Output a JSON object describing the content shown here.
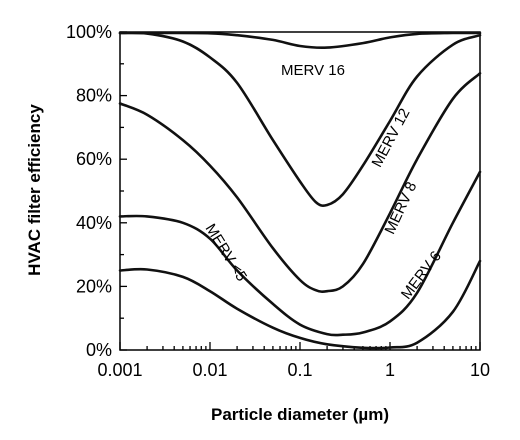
{
  "chart_data": {
    "type": "line",
    "x_scale": "log",
    "xlabel": "Particle diameter (µm)",
    "ylabel": "HVAC filter efficiency",
    "xlim": [
      0.001,
      10
    ],
    "ylim": [
      0,
      100
    ],
    "x_ticks": [
      0.001,
      0.01,
      0.1,
      1,
      10
    ],
    "x_tick_labels": [
      "0.001",
      "0.01",
      "0.1",
      "1",
      "10"
    ],
    "y_ticks": [
      0,
      20,
      40,
      60,
      80,
      100
    ],
    "y_tick_labels": [
      "0%",
      "20%",
      "40%",
      "60%",
      "80%",
      "100%"
    ],
    "grid": false,
    "series": [
      {
        "name": "MERV 16",
        "x": [
          0.001,
          0.003,
          0.01,
          0.02,
          0.05,
          0.1,
          0.2,
          0.5,
          1,
          2,
          5,
          10
        ],
        "y": [
          100,
          100,
          99.6,
          99,
          97.5,
          95.6,
          95.1,
          96.5,
          98.3,
          99.4,
          99.9,
          100
        ]
      },
      {
        "name": "MERV 12",
        "x": [
          0.001,
          0.002,
          0.005,
          0.01,
          0.02,
          0.05,
          0.1,
          0.15,
          0.2,
          0.3,
          0.5,
          1,
          2,
          5,
          10
        ],
        "y": [
          100,
          99.5,
          97,
          92,
          84,
          66,
          53,
          46.5,
          45.6,
          49,
          58,
          72,
          86,
          96,
          99
        ]
      },
      {
        "name": "MERV 8",
        "x": [
          0.001,
          0.002,
          0.005,
          0.01,
          0.02,
          0.05,
          0.1,
          0.15,
          0.2,
          0.3,
          0.5,
          1,
          2,
          5,
          10
        ],
        "y": [
          77.5,
          74,
          66,
          58,
          48,
          32,
          22,
          18.8,
          18.5,
          20,
          27,
          43,
          60,
          79,
          87
        ]
      },
      {
        "name": "MERV 6",
        "x": [
          0.001,
          0.002,
          0.005,
          0.01,
          0.02,
          0.05,
          0.1,
          0.2,
          0.3,
          0.5,
          1,
          2,
          5,
          10
        ],
        "y": [
          42,
          42,
          40,
          35,
          25,
          14.5,
          8,
          5,
          4.8,
          5.5,
          9,
          18,
          40,
          56
        ]
      },
      {
        "name": "MERV <5",
        "x": [
          0.001,
          0.002,
          0.005,
          0.01,
          0.02,
          0.05,
          0.1,
          0.2,
          0.5,
          1,
          2,
          5,
          10
        ],
        "y": [
          25,
          25.3,
          23,
          18.5,
          13,
          7,
          3.8,
          1.8,
          0.7,
          0.8,
          2.3,
          12,
          28
        ]
      }
    ],
    "labels": {
      "MERV 16": "MERV 16",
      "MERV 12": "MERV 12",
      "MERV 8": "MERV 8",
      "MERV 6": "MERV 6",
      "MERV <5": "MERV <5"
    }
  }
}
